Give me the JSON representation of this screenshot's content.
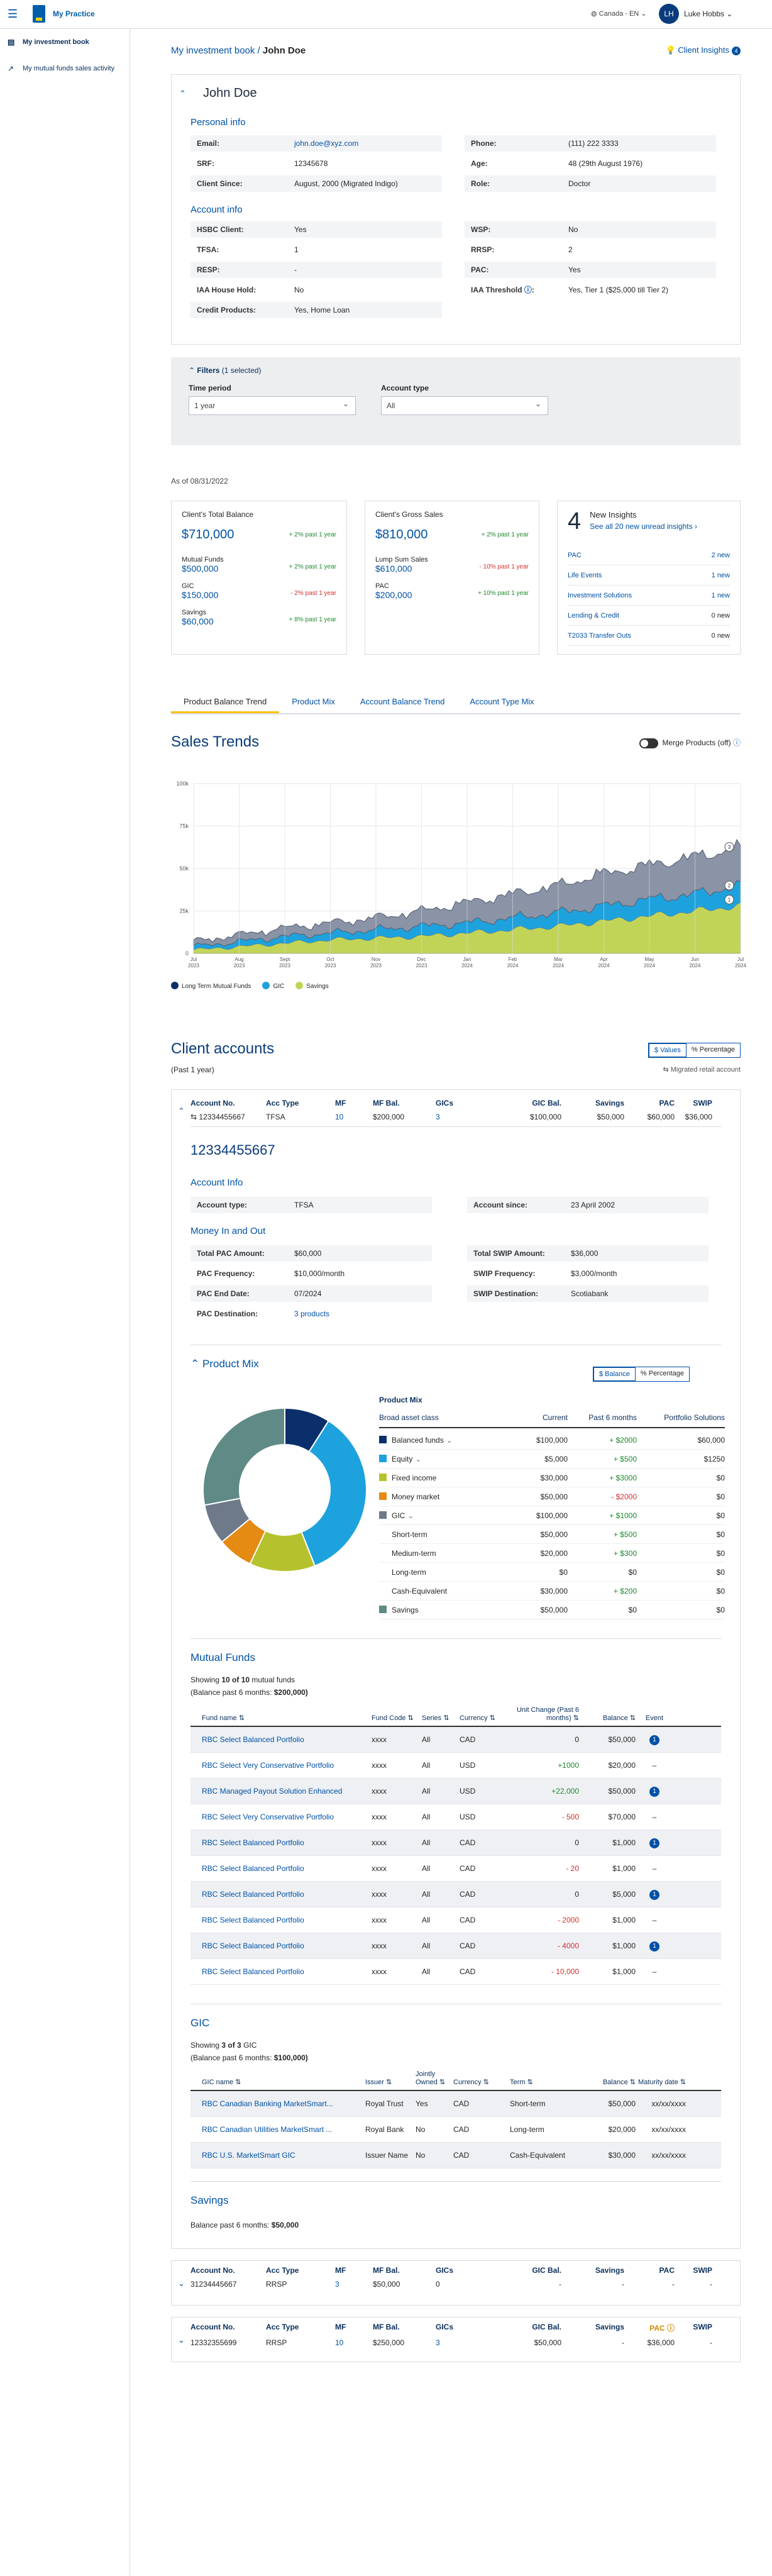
{
  "topbar": {
    "app_name": "My Practice",
    "region": "Canada - EN",
    "user_initials": "LH",
    "user_name": "Luke Hobbs"
  },
  "sidebar": {
    "items": [
      {
        "label": "My investment book"
      },
      {
        "label": "My mutual funds sales activity"
      }
    ]
  },
  "breadcrumb": {
    "parent": "My investment book",
    "current": "John Doe"
  },
  "client_insights": {
    "label": "Client Insights",
    "count": "4"
  },
  "client": {
    "name": "John Doe",
    "personal_heading": "Personal info",
    "email_label": "Email:",
    "email": "john.doe@xyz.com",
    "srf_label": "SRF:",
    "srf": "12345678",
    "since_label": "Client Since:",
    "since": "August, 2000 (Migrated Indigo)",
    "phone_label": "Phone:",
    "phone": "(111) 222 3333",
    "age_label": "Age:",
    "age": "48 (29th August 1976)",
    "role_label": "Role:",
    "role": "Doctor",
    "account_heading": "Account info",
    "hsbc_label": "HSBC Client:",
    "hsbc": "Yes",
    "tfsa_label": "TFSA:",
    "tfsa": "1",
    "resp_label": "RESP:",
    "resp": "-",
    "iaa_label": "IAA House Hold:",
    "iaa": "No",
    "credit_label": "Credit Products:",
    "credit": "Yes, Home Loan",
    "wsp_label": "WSP:",
    "wsp": "No",
    "rrsp_label": "RRSP:",
    "rrsp": "2",
    "pac_label": "PAC:",
    "pac": "Yes",
    "threshold_label": "IAA Threshold",
    "threshold": "Yes, Tier 1 ($25,000 till Tier 2)"
  },
  "filters": {
    "title": "Filters",
    "selected": "(1 selected)",
    "time_label": "Time period",
    "time_value": "1 year",
    "acct_label": "Account type",
    "acct_value": "All"
  },
  "as_of": "As of 08/31/2022",
  "summary": {
    "balance": {
      "title": "Client's Total Balance",
      "value": "$710,000",
      "change": "+ 2% past 1 year",
      "items": [
        {
          "label": "Mutual Funds",
          "value": "$500,000",
          "change": "+ 2% past 1 year",
          "color": "#1b8a2d"
        },
        {
          "label": "GIC",
          "value": "$150,000",
          "change": "- 2% past 1 year",
          "color": "#d62e2e"
        },
        {
          "label": "Savings",
          "value": "$60,000",
          "change": "+ 8% past 1 year",
          "color": "#1b8a2d"
        }
      ]
    },
    "sales": {
      "title": "Client's Gross Sales",
      "value": "$810,000",
      "change": "+ 2% past 1 year",
      "items": [
        {
          "label": "Lump Sum Sales",
          "value": "$610,000",
          "change": "- 10% past 1 year",
          "color": "#d62e2e"
        },
        {
          "label": "PAC",
          "value": "$200,000",
          "change": "+ 10% past 1 year",
          "color": "#1b8a2d"
        }
      ]
    },
    "insights": {
      "count": "4",
      "title": "New Insights",
      "link": "See all 20 new unread insights",
      "items": [
        {
          "label": "PAC",
          "value": "2 new"
        },
        {
          "label": "Life Events",
          "value": "1 new"
        },
        {
          "label": "Investment Solutions",
          "value": "1 new"
        },
        {
          "label": "Lending & Credit",
          "value": "0 new"
        },
        {
          "label": "T2033 Transfer Outs",
          "value": "0 new"
        }
      ]
    }
  },
  "tabs": [
    "Product Balance Trend",
    "Product Mix",
    "Account Balance Trend",
    "Account Type Mix"
  ],
  "sales_trends": {
    "title": "Sales Trends",
    "toggle_label": "Merge Products (off)"
  },
  "chart_data": {
    "type": "area",
    "title": "Sales Trends",
    "ylabel": "",
    "xlabel": "",
    "ylim": [
      0,
      100
    ],
    "yticks": [
      "0",
      "25k",
      "50k",
      "75k",
      "100k"
    ],
    "categories": [
      "Jul 2023",
      "Aug 2023",
      "Sept 2023",
      "Oct 2023",
      "Nov 2023",
      "Dec 2023",
      "Jan 2024",
      "Feb 2024",
      "Mar 2024",
      "Apr 2024",
      "May 2024",
      "Jun 2024",
      "Jul 2024"
    ],
    "series": [
      {
        "name": "Savings",
        "color": "#c2d458",
        "values": [
          2,
          4,
          6,
          8,
          9,
          10,
          12,
          14,
          16,
          19,
          22,
          25,
          28
        ]
      },
      {
        "name": "GIC",
        "color": "#1ea2dd",
        "values": [
          2,
          3,
          4,
          4,
          5,
          6,
          6,
          7,
          8,
          9,
          10,
          10,
          12
        ]
      },
      {
        "name": "Long Term Mutual Funds",
        "color": "#8a94a6",
        "values": [
          3,
          4,
          5,
          6,
          7,
          9,
          12,
          14,
          16,
          19,
          20,
          22,
          22
        ]
      }
    ],
    "end_labels": [
      "3",
      "2",
      "1"
    ]
  },
  "client_accounts": {
    "title": "Client accounts",
    "seg_values": "$ Values",
    "seg_pct": "% Percentage",
    "period": "(Past 1 year)",
    "migrated": "Migrated retail account"
  },
  "acct_headers": [
    "Account No.",
    "Acc Type",
    "MF",
    "MF Bal.",
    "GICs",
    "GIC Bal.",
    "Savings",
    "PAC",
    "SWIP"
  ],
  "account1": {
    "no": "12334455667",
    "type": "TFSA",
    "mf": "10",
    "mf_bal": "$200,000",
    "gics": "3",
    "gic_bal": "$100,000",
    "savings": "$50,000",
    "pac": "$60,000",
    "swip": "$36,000",
    "title": "12334455667",
    "info_heading": "Account Info",
    "acct_type_label": "Account type:",
    "acct_type": "TFSA",
    "since_label": "Account since:",
    "since": "23 April 2002",
    "money_heading": "Money In and Out",
    "pac_total_label": "Total PAC Amount:",
    "pac_total": "$60,000",
    "pac_freq_label": "PAC Frequency:",
    "pac_freq": "$10,000/month",
    "pac_end_label": "PAC End Date:",
    "pac_end": "07/2024",
    "pac_dest_label": "PAC Destination:",
    "pac_dest": "3 products",
    "swip_total_label": "Total SWIP Amount:",
    "swip_total": "$36,000",
    "swip_freq_label": "SWIP Frequency:",
    "swip_freq": "$3,000/month",
    "swip_dest_label": "SWIP Destination:",
    "swip_dest": "Scotiabank"
  },
  "product_mix": {
    "title": "Product Mix",
    "seg_balance": "$ Balance",
    "seg_pct": "% Percentage",
    "table_title": "Product Mix",
    "headers": [
      "Broad asset class",
      "Current",
      "Past 6 months",
      "Portfolio Solutions"
    ],
    "rows": [
      {
        "label": "Balanced funds",
        "current": "$100,000",
        "past": "+ $2000",
        "ps": "$60,000",
        "color": "#0a2f6b",
        "pc": "#1b8a2d"
      },
      {
        "label": "Equity",
        "current": "$5,000",
        "past": "+ $500",
        "ps": "$1250",
        "color": "#1ea2dd",
        "pc": "#1b8a2d"
      },
      {
        "label": "Fixed income",
        "current": "$30,000",
        "past": "+ $3000",
        "ps": "$0",
        "color": "#b5c22d",
        "pc": "#1b8a2d"
      },
      {
        "label": "Money market",
        "current": "$50,000",
        "past": "- $2000",
        "ps": "$0",
        "color": "#e58a13",
        "pc": "#d62e2e"
      },
      {
        "label": "GIC",
        "current": "$100,000",
        "past": "+ $1000",
        "ps": "$0",
        "color": "#6e7a8a",
        "pc": "#1b8a2d"
      },
      {
        "label": "Short-term",
        "current": "$50,000",
        "past": "+ $500",
        "ps": "$0",
        "color": "",
        "pc": "#1b8a2d"
      },
      {
        "label": "Medium-term",
        "current": "$20,000",
        "past": "+ $300",
        "ps": "$0",
        "color": "",
        "pc": "#1b8a2d"
      },
      {
        "label": "Long-term",
        "current": "$0",
        "past": "$0",
        "ps": "$0",
        "color": "",
        "pc": "#252525"
      },
      {
        "label": "Cash-Equivalent",
        "current": "$30,000",
        "past": "+ $200",
        "ps": "$0",
        "color": "",
        "pc": "#1b8a2d"
      },
      {
        "label": "Savings",
        "current": "$50,000",
        "past": "$0",
        "ps": "$0",
        "color": "#5f8a86",
        "pc": "#252525"
      }
    ],
    "donut": [
      {
        "name": "Balanced funds",
        "value": 9,
        "color": "#0a2f6b"
      },
      {
        "name": "Equity",
        "value": 35,
        "color": "#1ea2dd"
      },
      {
        "name": "Fixed income",
        "value": 13,
        "color": "#b5c22d"
      },
      {
        "name": "Money market",
        "value": 7,
        "color": "#e58a13"
      },
      {
        "name": "GIC",
        "value": 8,
        "color": "#6e7a8a"
      },
      {
        "name": "Savings",
        "value": 28,
        "color": "#5f8a86"
      }
    ]
  },
  "mutual_funds": {
    "title": "Mutual Funds",
    "showing_prefix": "Showing",
    "showing_count": "10 of 10",
    "showing_suffix": "mutual funds",
    "balance_prefix": "(Balance past 6 months:",
    "balance_value": "$200,000)",
    "headers": [
      "Fund name",
      "Fund Code",
      "Series",
      "Currency",
      "Unit Change (Past 6 months)",
      "Balance",
      "Event"
    ],
    "rows": [
      {
        "name": "RBC Select Balanced Portfolio",
        "code": "xxxx",
        "series": "All",
        "cur": "CAD",
        "chg": "0",
        "bal": "$50,000",
        "event": "1",
        "cc": "#252525"
      },
      {
        "name": "RBC Select Very Conservative Portfolio",
        "code": "xxxx",
        "series": "All",
        "cur": "USD",
        "chg": "+1000",
        "bal": "$20,000",
        "event": "",
        "cc": "#1b8a2d"
      },
      {
        "name": "RBC Managed Payout Solution Enhanced",
        "code": "xxxx",
        "series": "All",
        "cur": "USD",
        "chg": "+22,000",
        "bal": "$50,000",
        "event": "1",
        "cc": "#1b8a2d"
      },
      {
        "name": "RBC Select Very Conservative Portfolio",
        "code": "xxxx",
        "series": "All",
        "cur": "USD",
        "chg": "- 500",
        "bal": "$70,000",
        "event": "",
        "cc": "#d62e2e"
      },
      {
        "name": "RBC Select Balanced Portfolio",
        "code": "xxxx",
        "series": "All",
        "cur": "CAD",
        "chg": "0",
        "bal": "$1,000",
        "event": "1",
        "cc": "#252525"
      },
      {
        "name": "RBC Select Balanced Portfolio",
        "code": "xxxx",
        "series": "All",
        "cur": "CAD",
        "chg": "- 20",
        "bal": "$1,000",
        "event": "",
        "cc": "#d62e2e"
      },
      {
        "name": "RBC Select Balanced Portfolio",
        "code": "xxxx",
        "series": "All",
        "cur": "CAD",
        "chg": "0",
        "bal": "$5,000",
        "event": "1",
        "cc": "#252525"
      },
      {
        "name": "RBC Select Balanced Portfolio",
        "code": "xxxx",
        "series": "All",
        "cur": "CAD",
        "chg": "- 2000",
        "bal": "$1,000",
        "event": "",
        "cc": "#d62e2e"
      },
      {
        "name": "RBC Select Balanced Portfolio",
        "code": "xxxx",
        "series": "All",
        "cur": "CAD",
        "chg": "- 4000",
        "bal": "$1,000",
        "event": "1",
        "cc": "#d62e2e"
      },
      {
        "name": "RBC Select Balanced Portfolio",
        "code": "xxxx",
        "series": "All",
        "cur": "CAD",
        "chg": "- 10,000",
        "bal": "$1,000",
        "event": "",
        "cc": "#d62e2e"
      }
    ],
    "no_event": "–"
  },
  "gic": {
    "title": "GIC",
    "showing_prefix": "Showing",
    "showing_count": "3 of 3",
    "showing_suffix": "GIC",
    "balance_prefix": "(Balance past 6 months:",
    "balance_value": "$100,000)",
    "headers": [
      "GIC name",
      "Issuer",
      "Jointly Owned",
      "Currency",
      "Term",
      "Balance",
      "Maturity date"
    ],
    "rows": [
      {
        "name": "RBC Canadian Banking MarketSmart...",
        "issuer": "Royal Trust",
        "joint": "Yes",
        "cur": "CAD",
        "term": "Short-term",
        "bal": "$50,000",
        "mat": "xx/xx/xxxx"
      },
      {
        "name": "RBC Canadian Utilities MarketSmart ...",
        "issuer": "Royal Bank",
        "joint": "No",
        "cur": "CAD",
        "term": "Long-term",
        "bal": "$20,000",
        "mat": "xx/xx/xxxx"
      },
      {
        "name": "RBC U.S. MarketSmart GIC",
        "issuer": "Issuer  Name",
        "joint": "No",
        "cur": "CAD",
        "term": "Cash-Equivalent",
        "bal": "$30,000",
        "mat": "xx/xx/xxxx"
      }
    ]
  },
  "savings": {
    "title": "Savings",
    "balance_prefix": "Balance past 6 months:",
    "balance_value": "$50,000"
  },
  "account2": {
    "no": "31234445667",
    "type": "RRSP",
    "mf": "3",
    "mf_bal": "$50,000",
    "gics": "0",
    "gic_bal": "-",
    "savings": "-",
    "pac": "-",
    "swip": "-"
  },
  "account3": {
    "no": "12332355699",
    "type": "RRSP",
    "mf": "10",
    "mf_bal": "$250,000",
    "gics": "3",
    "gic_bal": "$50,000",
    "savings": "-",
    "pac": "$36,000",
    "swip": "-",
    "pac_header": "PAC"
  }
}
